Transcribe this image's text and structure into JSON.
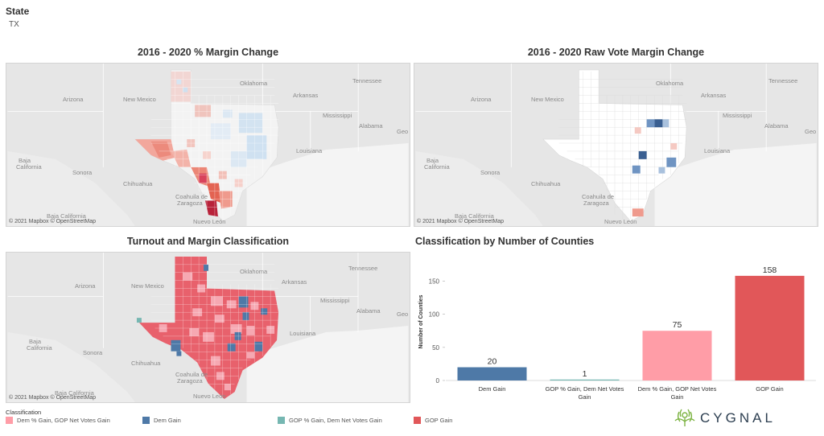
{
  "filter": {
    "label": "State",
    "value": "TX"
  },
  "panels": {
    "margin_change": {
      "title": "2016 - 2020 % Margin Change"
    },
    "raw_vote": {
      "title": "2016 - 2020  Raw Vote Margin Change"
    },
    "turnout": {
      "title": "Turnout and Margin Classification"
    },
    "counties": {
      "title": "Classification by Number of Counties"
    }
  },
  "map_labels": {
    "oklahoma": "Oklahoma",
    "arkansas": "Arkansas",
    "tennessee": "Tennessee",
    "mississippi": "Mississippi",
    "alabama": "Alabama",
    "georgia_short": "Geo",
    "louisiana": "Louisiana",
    "arizona": "Arizona",
    "new_mexico": "New Mexico",
    "baja_california_1": "Baja",
    "baja_california_2": "California",
    "sonora": "Sonora",
    "chihuahua": "Chihuahua",
    "coahuila_1": "Coahuila de",
    "coahuila_2": "Zaragoza",
    "baja_california": "Baja California",
    "nuevo_leon": "Nuevo León",
    "attribution": "© 2021 Mapbox © OpenStreetMap"
  },
  "chart_data": {
    "type": "bar",
    "categories": [
      "Dem Gain",
      "GOP % Gain, Dem Net Votes Gain",
      "Dem % Gain, GOP Net Votes Gain",
      "GOP Gain"
    ],
    "category_lines": [
      [
        "Dem Gain"
      ],
      [
        "GOP % Gain, Dem Net Votes",
        "Gain"
      ],
      [
        "Dem % Gain, GOP Net Votes",
        "Gain"
      ],
      [
        "GOP Gain"
      ]
    ],
    "values": [
      20,
      1,
      75,
      158
    ],
    "colors": [
      "#4e79a7",
      "#76b7b2",
      "#ff9da7",
      "#e15759"
    ],
    "title": "Classification by Number of Counties",
    "xlabel": "",
    "ylabel": "Number of Counties",
    "yticks": [
      0,
      50,
      100,
      150
    ],
    "ylim": [
      0,
      170
    ],
    "grid": false
  },
  "legend": {
    "title": "Classification",
    "items": [
      {
        "label": "Dem % Gain, GOP Net Votes Gain",
        "color": "#ff9da7"
      },
      {
        "label": "Dem Gain",
        "color": "#4e79a7"
      },
      {
        "label": "GOP % Gain, Dem Net Votes Gain",
        "color": "#76b7b2"
      },
      {
        "label": "GOP Gain",
        "color": "#e15759"
      }
    ]
  },
  "brand": {
    "name": "CYGNAL",
    "color": "#7cb342"
  }
}
